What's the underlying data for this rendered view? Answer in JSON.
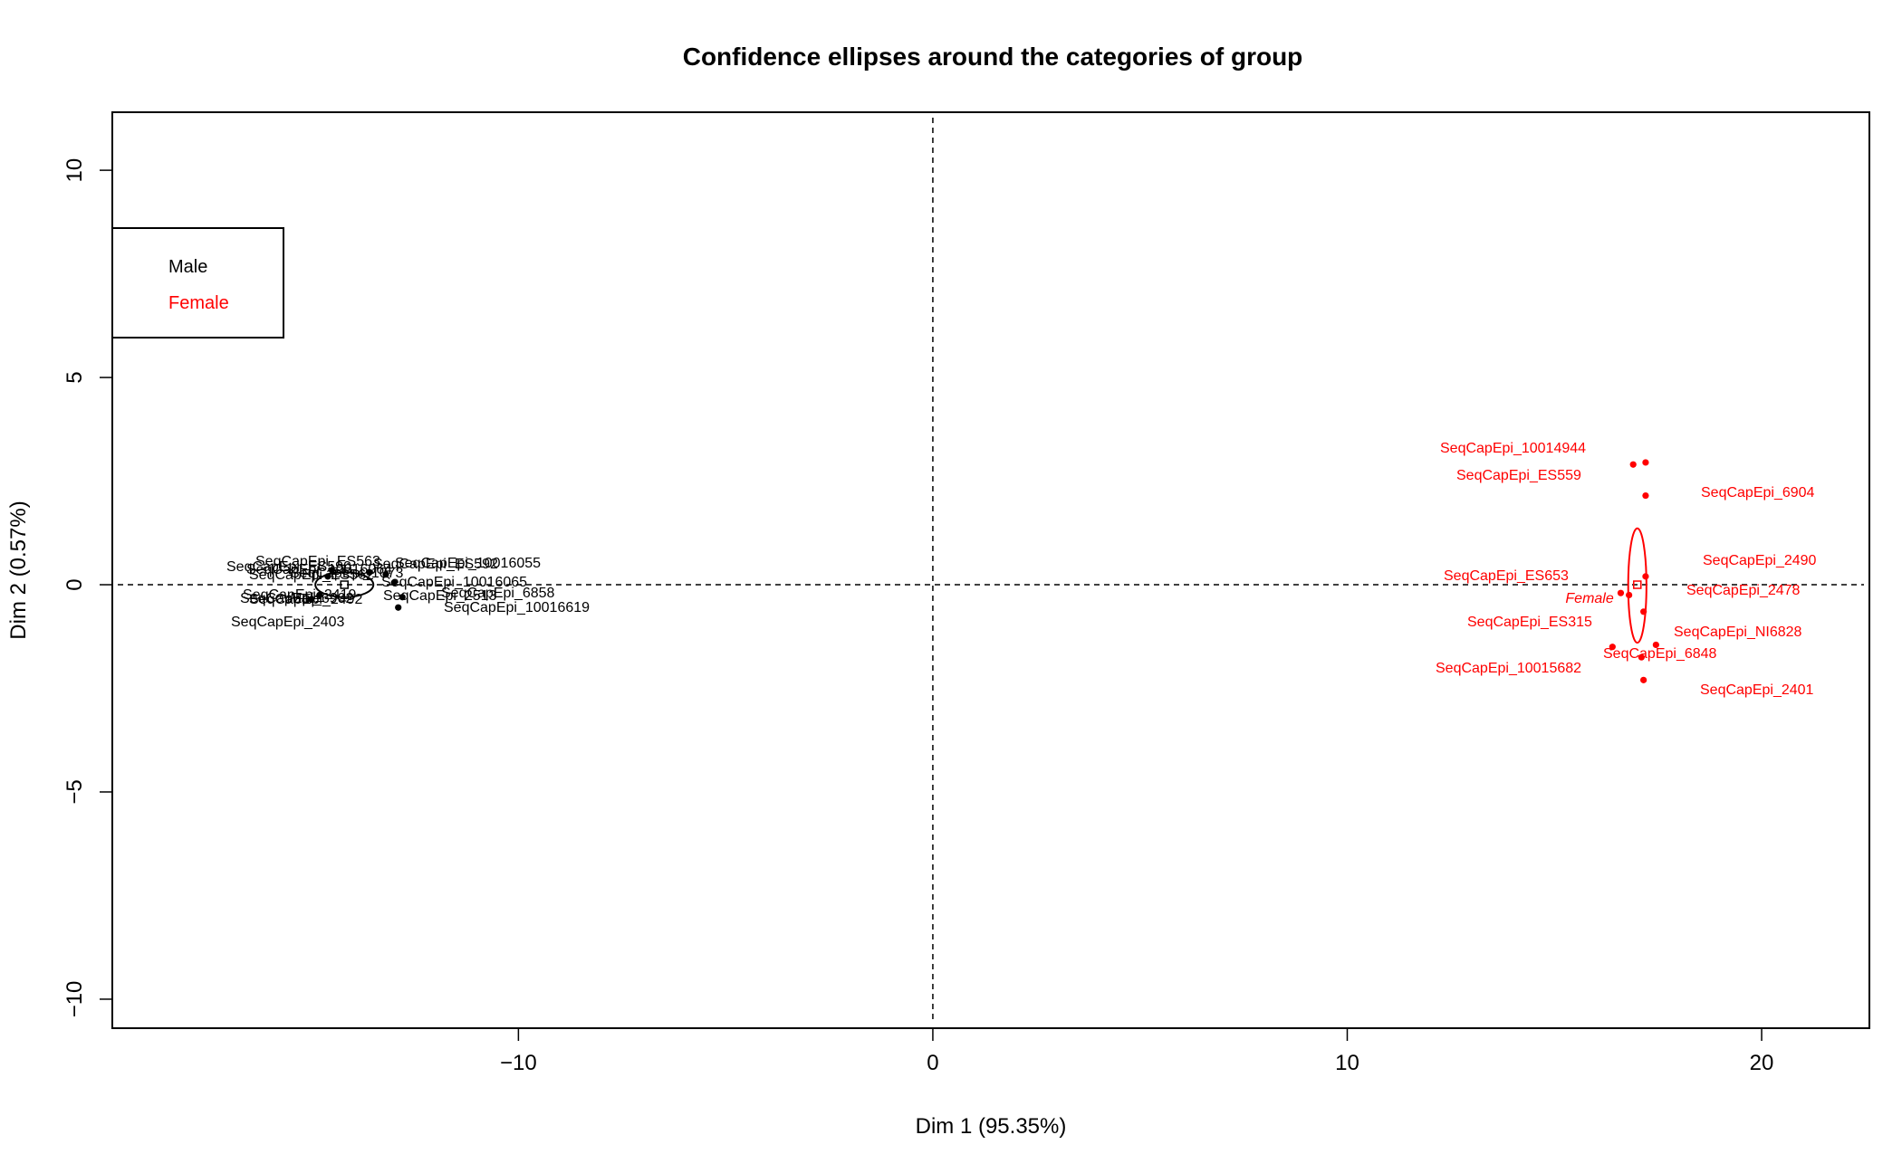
{
  "chart_data": {
    "type": "scatter",
    "title": "Confidence ellipses around the categories of group",
    "xlabel": "Dim 1 (95.35%)",
    "ylabel": "Dim 2 (0.57%)",
    "xlim": [
      -19.8,
      22.6
    ],
    "ylim": [
      -10.7,
      11.4
    ],
    "x_ticks": [
      -10,
      0,
      10,
      20
    ],
    "x_tick_labels": [
      "−10",
      "0",
      "10",
      "20"
    ],
    "y_ticks": [
      -10,
      -5,
      0,
      5,
      10
    ],
    "y_tick_labels": [
      "−10",
      "−5",
      "0",
      "5",
      "10"
    ],
    "reference_lines": {
      "x": 0,
      "y": 0,
      "style": "dashed"
    },
    "grid": false,
    "legend": {
      "position": "top-left",
      "entries": [
        {
          "label": "Male",
          "color": "#000000"
        },
        {
          "label": "Female",
          "color": "#ff0000"
        }
      ]
    },
    "series": [
      {
        "name": "Male",
        "color": "#000000",
        "points": [
          {
            "label": "SeqCapEpi_ES563",
            "x": -14.5,
            "y": 0.35
          },
          {
            "label": "SeqCapEpi_10016055",
            "x": -13.2,
            "y": 0.25
          },
          {
            "label": "SeqCapEpi_ES592",
            "x": -13.6,
            "y": 0.3
          },
          {
            "label": "SeqCapEpi_1073",
            "x": -14.6,
            "y": 0.2
          },
          {
            "label": "SeqCapEpi_10016065",
            "x": -13.0,
            "y": 0.05
          },
          {
            "label": "SeqCapEpi_6858",
            "x": -12.8,
            "y": -0.3
          },
          {
            "label": "SeqCapEpi_10016619",
            "x": -12.9,
            "y": -0.55
          },
          {
            "label": "SeqCapEpi_2403",
            "x": -15.0,
            "y": -0.35
          },
          {
            "label": "SeqCapEpi_6902",
            "x": -14.8,
            "y": -0.25
          }
        ],
        "visible_labels": [
          "SeqCapEpi_ES563",
          "SeqCapEpi_10016055",
          "SeqCapEpi_ES592",
          "SeqCapEpi_1073",
          "SeqCapEpi_10016065",
          "SeqCapEpi_6858",
          "SeqCapEpi_10016619",
          "SeqCapEpi_2403",
          "SeqCapEpi_6902",
          "SeqCapEpi_ES590",
          "SeqCapEpi_10016064",
          "SeqCapEpi_2419",
          "SeqCapEpi_2492",
          "SeqCapEpi_2513",
          "SeqCapEpi_ES562"
        ]
      },
      {
        "name": "Female",
        "color": "#ff0000",
        "points": [
          {
            "label": "SeqCapEpi_10014944",
            "x": 16.9,
            "y": 2.9
          },
          {
            "label": "SeqCapEpi_ES559",
            "x": 17.2,
            "y": 2.95
          },
          {
            "label": "SeqCapEpi_6904",
            "x": 17.2,
            "y": 2.15
          },
          {
            "label": "SeqCapEpi_2490",
            "x": 17.2,
            "y": 0.2
          },
          {
            "label": "SeqCapEpi_ES653",
            "x": 16.6,
            "y": -0.2
          },
          {
            "label": "SeqCapEpi_2478",
            "x": 16.8,
            "y": -0.25
          },
          {
            "label": "SeqCapEpi_ES315",
            "x": 17.15,
            "y": -0.65
          },
          {
            "label": "SeqCapEpi_NI6828",
            "x": 17.45,
            "y": -1.45
          },
          {
            "label": "SeqCapEpi_6848",
            "x": 16.4,
            "y": -1.5
          },
          {
            "label": "SeqCapEpi_10015682",
            "x": 17.1,
            "y": -1.75
          },
          {
            "label": "SeqCapEpi_2401",
            "x": 17.15,
            "y": -2.3
          }
        ]
      }
    ],
    "category_centers": [
      {
        "label": "Male",
        "x": -14.2,
        "y": 0.0
      },
      {
        "label": "Female",
        "x": 17.0,
        "y": 0.0
      }
    ],
    "ellipses": [
      {
        "group": "Male",
        "cx": -14.2,
        "cy": 0.0,
        "rx": 0.7,
        "ry": 0.3
      },
      {
        "group": "Female",
        "cx": 17.0,
        "cy": -0.02,
        "rx": 0.22,
        "ry": 1.38
      }
    ]
  }
}
